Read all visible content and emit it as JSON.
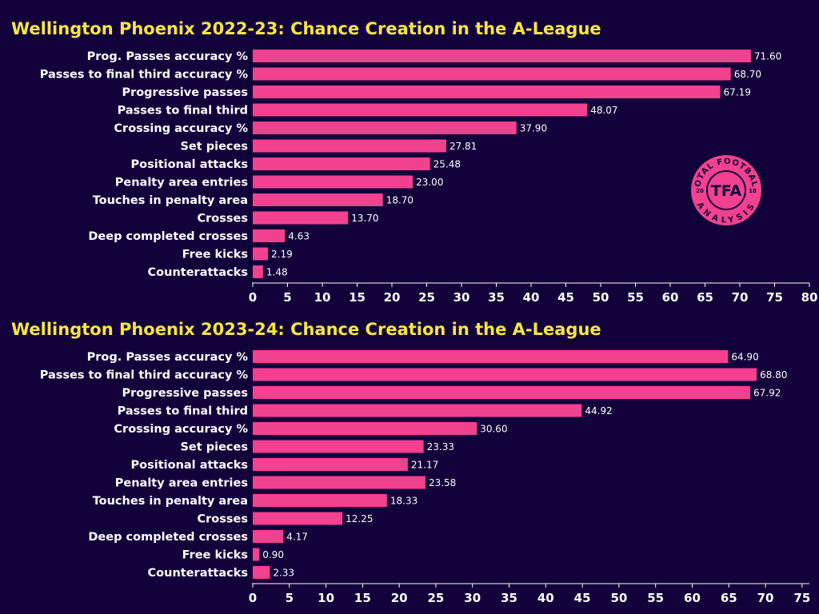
{
  "colors": {
    "background": "#12003a",
    "bar": "#f2418f",
    "title": "#f7e642",
    "text": "#ffffff"
  },
  "logo": {
    "top_text": "TOTAL FOOTBALL",
    "bottom_text": "ANALYSIS",
    "center_text": "TFA",
    "left_year": "20",
    "right_year": "18"
  },
  "chart_data": [
    {
      "type": "bar",
      "orientation": "horizontal",
      "title": "Wellington Phoenix 2022-23: Chance Creation in the A-League",
      "categories": [
        "Prog. Passes accuracy %",
        "Passes to final third accuracy %",
        "Progressive passes",
        "Passes to final third",
        "Crossing accuracy %",
        "Set pieces",
        "Positional attacks",
        "Penalty area entries",
        "Touches in penalty area",
        "Crosses",
        "Deep completed crosses",
        "Free kicks",
        "Counterattacks"
      ],
      "values": [
        71.6,
        68.7,
        67.19,
        48.07,
        37.9,
        27.81,
        25.48,
        23.0,
        18.7,
        13.7,
        4.63,
        2.19,
        1.48
      ],
      "value_labels": [
        "71.60",
        "68.70",
        "67.19",
        "48.07",
        "37.90",
        "27.81",
        "25.48",
        "23.00",
        "18.70",
        "13.70",
        "4.63",
        "2.19",
        "1.48"
      ],
      "xlim": [
        0,
        80
      ],
      "xticks": [
        "0",
        "5",
        "10",
        "15",
        "20",
        "25",
        "30",
        "35",
        "40",
        "45",
        "50",
        "55",
        "60",
        "65",
        "70",
        "75",
        "80"
      ],
      "grid": false
    },
    {
      "type": "bar",
      "orientation": "horizontal",
      "title": "Wellington Phoenix 2023-24: Chance Creation in the A-League",
      "categories": [
        "Prog. Passes accuracy %",
        "Passes to final third accuracy %",
        "Progressive passes",
        "Passes to final third",
        "Crossing accuracy %",
        "Set pieces",
        "Positional attacks",
        "Penalty area entries",
        "Touches in penalty area",
        "Crosses",
        "Deep completed crosses",
        "Free kicks",
        "Counterattacks"
      ],
      "values": [
        64.9,
        68.8,
        67.92,
        44.92,
        30.6,
        23.33,
        21.17,
        23.58,
        18.33,
        12.25,
        4.17,
        0.9,
        2.33
      ],
      "value_labels": [
        "64.90",
        "68.80",
        "67.92",
        "44.92",
        "30.60",
        "23.33",
        "21.17",
        "23.58",
        "18.33",
        "12.25",
        "4.17",
        "0.90",
        "2.33"
      ],
      "xlim": [
        0,
        76
      ],
      "xticks": [
        "0",
        "5",
        "10",
        "15",
        "20",
        "25",
        "30",
        "35",
        "40",
        "45",
        "50",
        "55",
        "60",
        "65",
        "70",
        "75"
      ],
      "grid": false
    }
  ]
}
